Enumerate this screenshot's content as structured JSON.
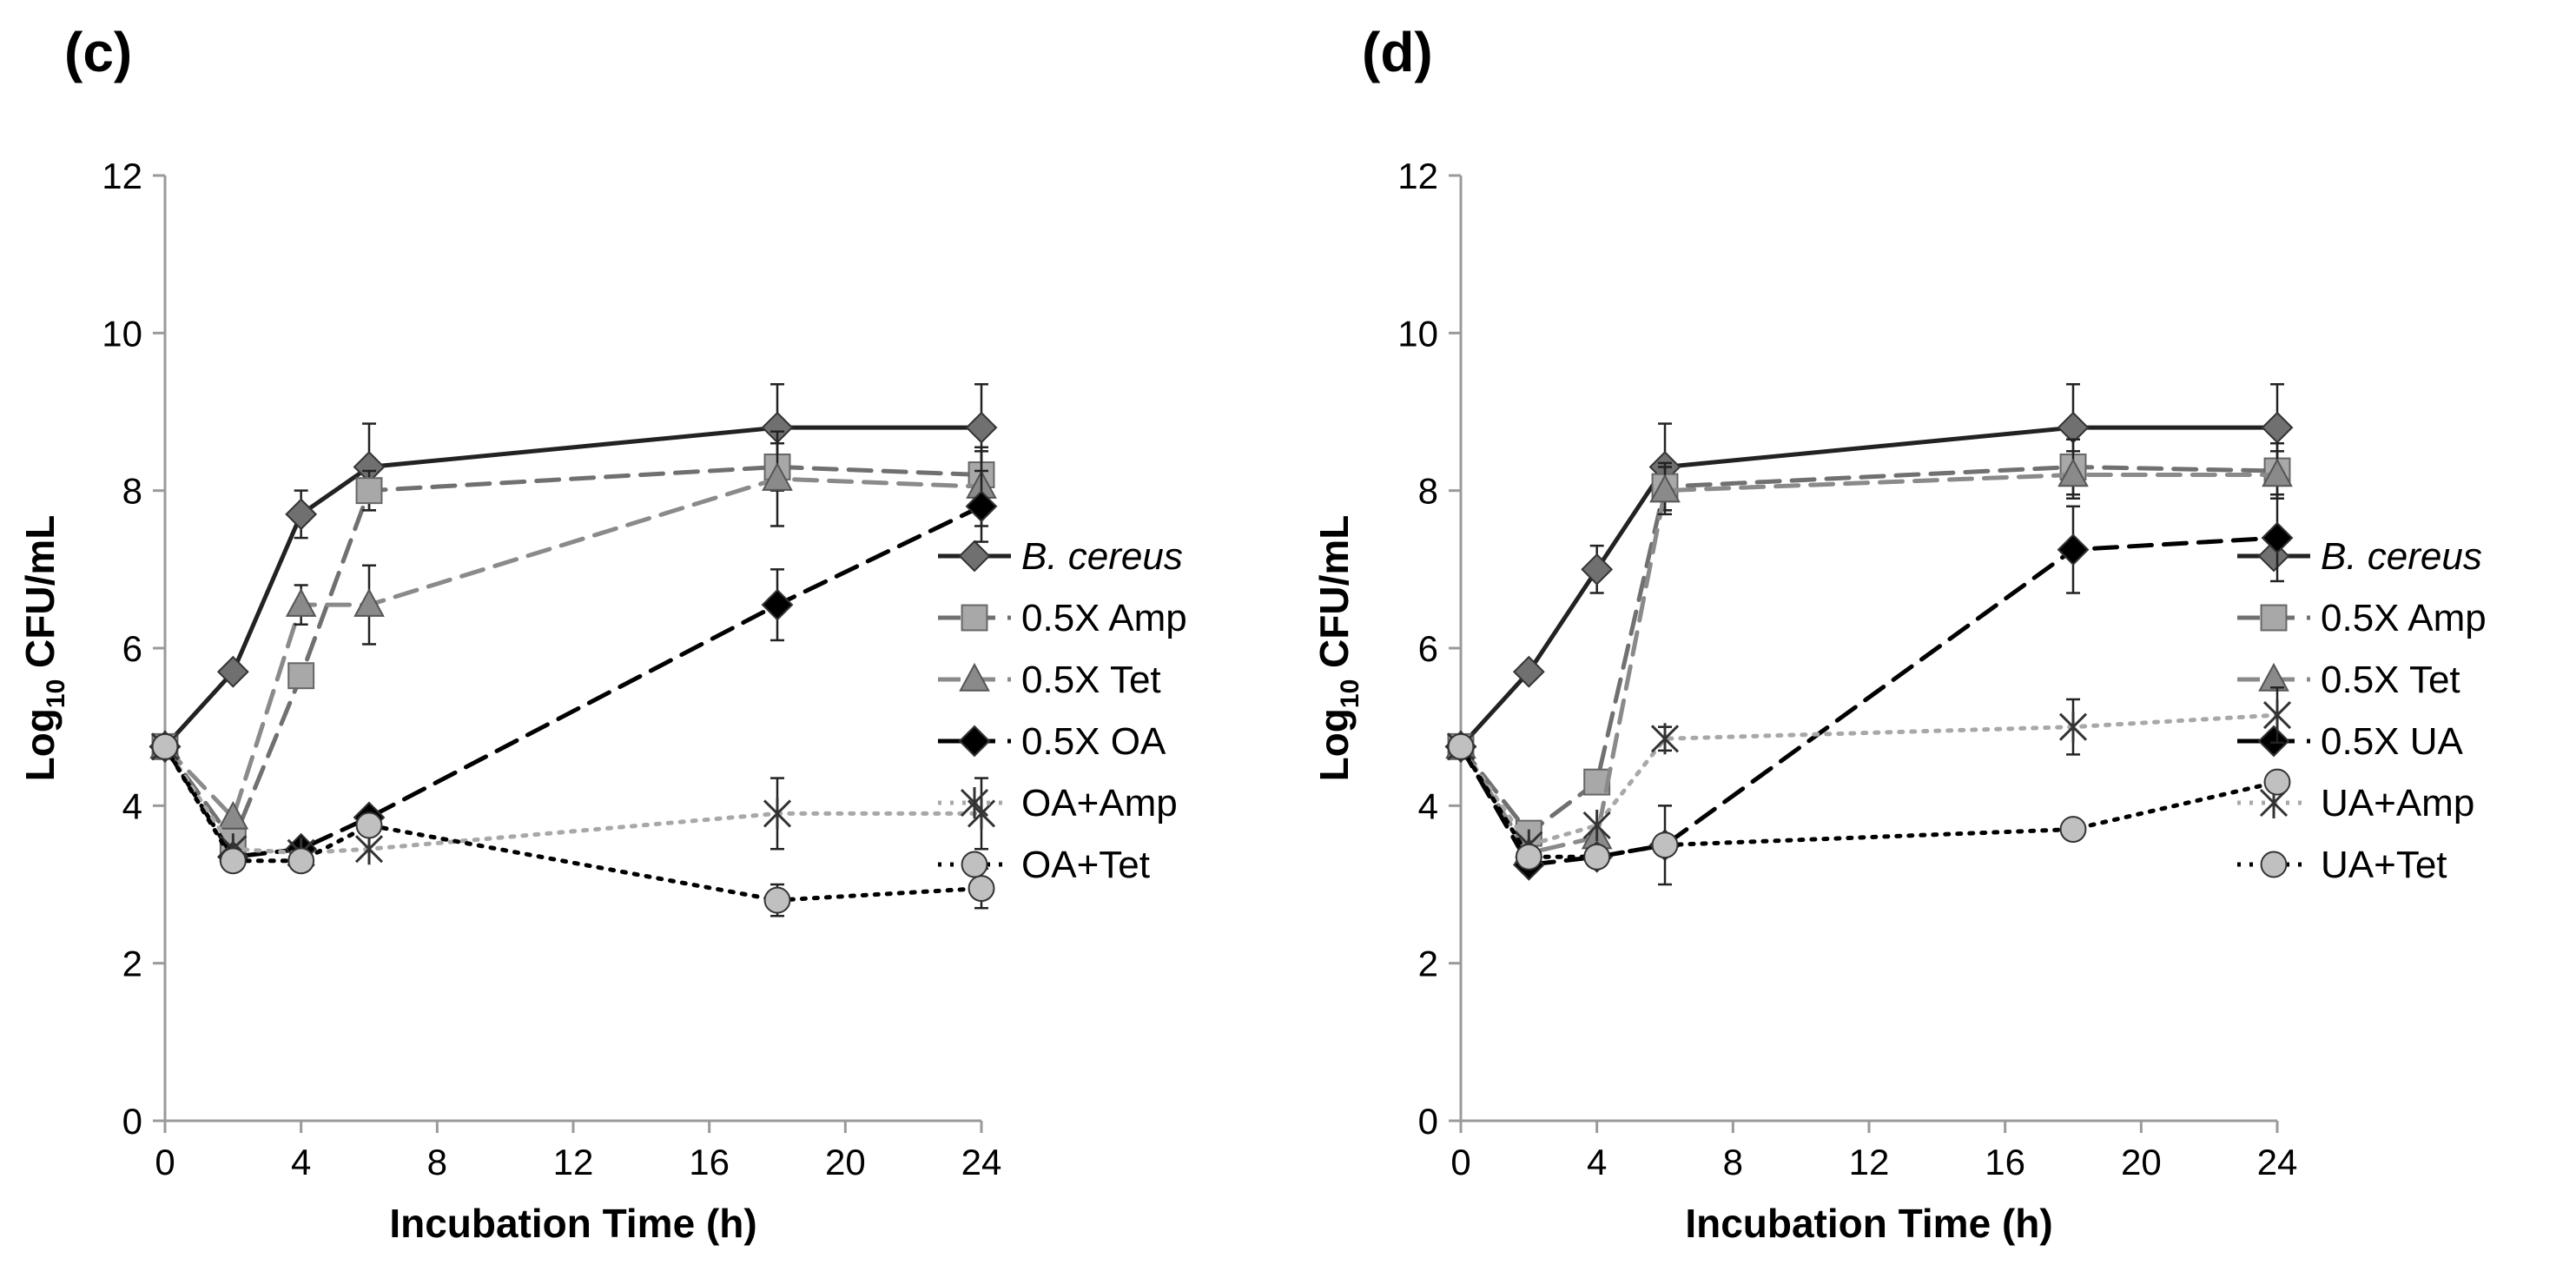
{
  "chart_data": [
    {
      "type": "line",
      "panel_label": "(c)",
      "title": "",
      "xlabel": "Incubation Time (h)",
      "ylabel_main": "Log",
      "ylabel_sub": "10",
      "ylabel_rest": " CFU/mL",
      "xlim": [
        0,
        24
      ],
      "ylim": [
        0,
        12
      ],
      "xticks": [
        "0",
        "4",
        "8",
        "12",
        "16",
        "20",
        "24"
      ],
      "yticks": [
        "0",
        "2",
        "4",
        "6",
        "8",
        "10",
        "12"
      ],
      "grid": false,
      "legend_position": "right",
      "x": [
        0,
        2,
        4,
        6,
        18,
        24
      ],
      "series": [
        {
          "name": "B. cereus",
          "italic": true,
          "values": [
            4.75,
            5.7,
            7.7,
            8.3,
            8.8,
            8.8
          ],
          "errors": [
            0,
            0,
            0.3,
            0.55,
            0.55,
            0.55
          ],
          "color": "#222222",
          "marker": "diamond",
          "marker_color": "#707070",
          "dash": "solid"
        },
        {
          "name": "0.5X Amp",
          "italic": false,
          "values": [
            4.75,
            3.55,
            5.65,
            8.0,
            8.3,
            8.2
          ],
          "errors": [
            0,
            0,
            0,
            0.25,
            0.3,
            0.3
          ],
          "color": "#707070",
          "marker": "square",
          "marker_color": "#a8a8a8",
          "dash": "dash"
        },
        {
          "name": "0.5X Tet",
          "italic": false,
          "values": [
            4.75,
            3.85,
            6.55,
            6.55,
            8.15,
            8.05
          ],
          "errors": [
            0,
            0,
            0.25,
            0.5,
            0.6,
            0.5
          ],
          "color": "#8a8a8a",
          "marker": "triangle",
          "marker_color": "#8a8a8a",
          "dash": "dash"
        },
        {
          "name": "0.5X OA",
          "italic": false,
          "values": [
            4.75,
            3.35,
            3.45,
            3.85,
            6.55,
            7.8
          ],
          "errors": [
            0,
            0,
            0,
            0,
            0.45,
            0.45
          ],
          "color": "#000000",
          "marker": "diamond",
          "marker_color": "#000000",
          "dash": "dash"
        },
        {
          "name": "OA+Amp",
          "italic": false,
          "values": [
            4.75,
            3.45,
            3.4,
            3.45,
            3.9,
            3.9
          ],
          "errors": [
            0,
            0,
            0,
            0,
            0.45,
            0.45
          ],
          "color": "#a8a8a8",
          "marker": "star",
          "marker_color": "#333333",
          "dash": "dot"
        },
        {
          "name": "OA+Tet",
          "italic": false,
          "values": [
            4.75,
            3.3,
            3.3,
            3.75,
            2.8,
            2.95
          ],
          "errors": [
            0,
            0,
            0,
            0,
            0.2,
            0.25
          ],
          "color": "#000000",
          "marker": "circle",
          "marker_color": "#c0c0c0",
          "dash": "dot"
        }
      ]
    },
    {
      "type": "line",
      "panel_label": "(d)",
      "title": "",
      "xlabel": "Incubation Time (h)",
      "ylabel_main": "Log",
      "ylabel_sub": "10",
      "ylabel_rest": " CFU/mL",
      "xlim": [
        0,
        24
      ],
      "ylim": [
        0,
        12
      ],
      "xticks": [
        "0",
        "4",
        "8",
        "12",
        "16",
        "20",
        "24"
      ],
      "yticks": [
        "0",
        "2",
        "4",
        "6",
        "8",
        "10",
        "12"
      ],
      "grid": false,
      "legend_position": "right",
      "x": [
        0,
        2,
        4,
        6,
        18,
        24
      ],
      "series": [
        {
          "name": "B. cereus",
          "italic": true,
          "values": [
            4.75,
            5.7,
            7.0,
            8.3,
            8.8,
            8.8
          ],
          "errors": [
            0,
            0,
            0.3,
            0.55,
            0.55,
            0.55
          ],
          "color": "#222222",
          "marker": "diamond",
          "marker_color": "#707070",
          "dash": "solid"
        },
        {
          "name": "0.5X Amp",
          "italic": false,
          "values": [
            4.75,
            3.65,
            4.3,
            8.05,
            8.3,
            8.25
          ],
          "errors": [
            0,
            0,
            0,
            0.3,
            0.35,
            0.35
          ],
          "color": "#707070",
          "marker": "square",
          "marker_color": "#a8a8a8",
          "dash": "dash"
        },
        {
          "name": "0.5X Tet",
          "italic": false,
          "values": [
            4.75,
            3.4,
            3.6,
            8.0,
            8.2,
            8.2
          ],
          "errors": [
            0,
            0,
            0,
            0.3,
            0.3,
            0.3
          ],
          "color": "#8a8a8a",
          "marker": "triangle",
          "marker_color": "#8a8a8a",
          "dash": "dash"
        },
        {
          "name": "0.5X UA",
          "italic": false,
          "values": [
            4.75,
            3.25,
            3.35,
            3.5,
            7.25,
            7.4
          ],
          "errors": [
            0,
            0,
            0,
            0,
            0.55,
            0.55
          ],
          "color": "#000000",
          "marker": "diamond",
          "marker_color": "#000000",
          "dash": "dash"
        },
        {
          "name": "UA+Amp",
          "italic": false,
          "values": [
            4.75,
            3.5,
            3.75,
            4.85,
            5.0,
            5.15
          ],
          "errors": [
            0,
            0,
            0,
            0.15,
            0.35,
            0.35
          ],
          "color": "#a8a8a8",
          "marker": "star",
          "marker_color": "#333333",
          "dash": "dot"
        },
        {
          "name": "UA+Tet",
          "italic": false,
          "values": [
            4.75,
            3.35,
            3.35,
            3.5,
            3.7,
            4.3
          ],
          "errors": [
            0,
            0,
            0,
            0.5,
            0,
            0
          ],
          "color": "#000000",
          "marker": "circle",
          "marker_color": "#c0c0c0",
          "dash": "dot"
        }
      ]
    }
  ]
}
